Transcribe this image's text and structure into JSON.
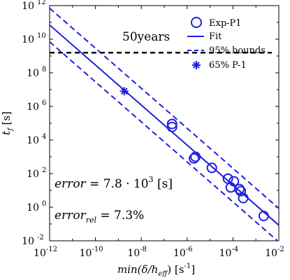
{
  "chart_data": {
    "type": "scatter",
    "xscale": "log",
    "yscale": "log",
    "xlim": [
      1e-12,
      0.01
    ],
    "ylim": [
      0.01,
      1000000000000.0
    ],
    "x_ticks": [
      {
        "base": "10",
        "exp": "-12",
        "value": 1e-12
      },
      {
        "base": "10",
        "exp": "-10",
        "value": 1e-10
      },
      {
        "base": "10",
        "exp": "-8",
        "value": 1e-08
      },
      {
        "base": "10",
        "exp": "-6",
        "value": 1e-06
      },
      {
        "base": "10",
        "exp": "-4",
        "value": 0.0001
      },
      {
        "base": "10",
        "exp": "-2",
        "value": 0.01
      }
    ],
    "y_ticks": [
      {
        "base": "10",
        "exp": "-2",
        "value": 0.01
      },
      {
        "base": "10",
        "exp": "0",
        "value": 1
      },
      {
        "base": "10",
        "exp": "2",
        "value": 100.0
      },
      {
        "base": "10",
        "exp": "4",
        "value": 10000.0
      },
      {
        "base": "10",
        "exp": "6",
        "value": 1000000.0
      },
      {
        "base": "10",
        "exp": "8",
        "value": 100000000.0
      },
      {
        "base": "10",
        "exp": "10",
        "value": 10000000000.0
      },
      {
        "base": "10",
        "exp": "12",
        "value": 1000000000000.0
      }
    ],
    "xlabel": {
      "prefix": "min(",
      "delta": "δ",
      "mid": "/h",
      "sub": "eff",
      "suffix": ") [s",
      "unit_exp": "-1",
      "close": "]"
    },
    "ylabel": {
      "main": "t",
      "sub": "f",
      "unit": " [s]"
    },
    "color": "#1f1fe0",
    "series": [
      {
        "name": "Exp-P1",
        "marker": "circle",
        "points": [
          {
            "x": 2.2e-07,
            "y": 60000.0
          },
          {
            "x": 2.2e-07,
            "y": 90000.0
          },
          {
            "x": 2e-06,
            "y": 800
          },
          {
            "x": 2.3e-06,
            "y": 1000
          },
          {
            "x": 1.2e-05,
            "y": 220
          },
          {
            "x": 6e-05,
            "y": 50
          },
          {
            "x": 8e-05,
            "y": 15
          },
          {
            "x": 0.00011,
            "y": 35
          },
          {
            "x": 0.00019,
            "y": 12
          },
          {
            "x": 0.00022,
            "y": 9
          },
          {
            "x": 0.00028,
            "y": 3.5
          },
          {
            "x": 0.0022,
            "y": 0.3
          }
        ]
      },
      {
        "name": "Fit",
        "style": "solid",
        "line": [
          {
            "x": 1e-12,
            "y": 70000000000.0
          },
          {
            "x": 0.01,
            "y": 0.085
          }
        ]
      },
      {
        "name": "95% bounds",
        "style": "dashed",
        "lines": [
          [
            {
              "x": 1e-12,
              "y": 700000000000.0
            },
            {
              "x": 0.01,
              "y": 0.85
            }
          ],
          [
            {
              "x": 1e-12,
              "y": 7000000000.0
            },
            {
              "x": 0.01,
              "y": 0.0085
            }
          ]
        ]
      },
      {
        "name": "65% P-1",
        "marker": "asterisk",
        "points": [
          {
            "x": 1.8e-09,
            "y": 8000000.0
          }
        ]
      }
    ],
    "reference_line": {
      "y": 1580000000.0,
      "label": "50years",
      "color": "#000000"
    },
    "annotations": {
      "error": {
        "var": "error",
        "eq": " = 7.8 · 10",
        "exp": "3",
        "unit": " [s]"
      },
      "error_rel": {
        "var": "error",
        "sub": "rel",
        "eq": " = 7.3%"
      }
    },
    "legend": {
      "position": "top-right"
    }
  }
}
